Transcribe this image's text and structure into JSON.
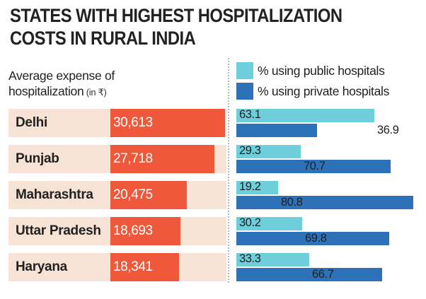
{
  "header": {
    "title_line1": "STATES WITH HIGHEST HOSPITALIZATION",
    "title_line2": "COSTS IN RURAL INDIA"
  },
  "subhead": {
    "line1": "Average expense of",
    "line2": "hospitalization",
    "unit": " (in ₹)"
  },
  "legend": [
    {
      "label": "% using public hospitals",
      "color": "#6ecfda"
    },
    {
      "label": "% using private hospitals",
      "color": "#2d72b9"
    }
  ],
  "colors": {
    "expense": "#f0583c",
    "row_background": "#f6e3d5",
    "public": "#6ecfda",
    "private": "#2d72b9"
  },
  "chart_data": {
    "type": "bar",
    "categories": [
      "Delhi",
      "Punjab",
      "Maharashtra",
      "Uttar Pradesh",
      "Haryana"
    ],
    "expense": {
      "values": [
        30613,
        27718,
        20475,
        18693,
        18341
      ],
      "labels": [
        "30,613",
        "27,718",
        "20,475",
        "18,693",
        "18,341"
      ]
    },
    "series": [
      {
        "name": "% using public hospitals",
        "values": [
          63.1,
          29.3,
          19.2,
          30.2,
          33.3
        ],
        "labels": [
          "63.1",
          "29.3",
          "19.2",
          "30.2",
          "33.3"
        ]
      },
      {
        "name": "% using private hospitals",
        "values": [
          36.9,
          70.7,
          80.8,
          69.8,
          66.7
        ],
        "labels": [
          "36.9",
          "70.7",
          "80.8",
          "69.8",
          "66.7"
        ]
      }
    ]
  }
}
